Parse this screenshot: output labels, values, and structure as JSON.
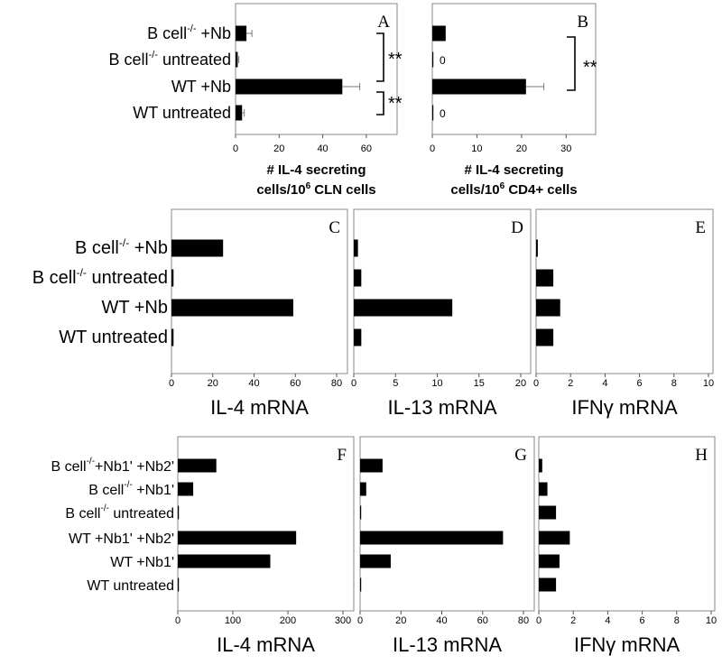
{
  "chart_data": [
    {
      "panel": "A",
      "type": "bar",
      "orientation": "horizontal",
      "categories": [
        "B cell -/- +Nb",
        "B cell -/- untreated",
        "WT +Nb",
        "WT untreated"
      ],
      "values": [
        5,
        1,
        49,
        3
      ],
      "errors": [
        2.5,
        0.5,
        8,
        1
      ],
      "xlim": [
        0,
        70
      ],
      "ticks": [
        "0",
        "20",
        "40",
        "60"
      ],
      "tick_values": [
        0,
        20,
        40,
        60
      ],
      "xlabel_line1": "# IL-4 secreting",
      "xlabel_line2": "cells/10",
      "xlabel_sup": "6",
      "xlabel_line2_tail": " CLN cells",
      "significance": [
        "**",
        "**"
      ]
    },
    {
      "panel": "B",
      "type": "bar",
      "orientation": "horizontal",
      "categories": [
        "B cell -/- +Nb",
        "B cell -/- untreated",
        "WT +Nb",
        "WT untreated"
      ],
      "values": [
        3,
        0,
        21,
        0
      ],
      "errors": [
        0,
        0,
        4,
        0
      ],
      "zero_labels": [
        "",
        "0",
        "",
        "0"
      ],
      "xlim": [
        0,
        35
      ],
      "ticks": [
        "0",
        "10",
        "20",
        "30"
      ],
      "tick_values": [
        0,
        10,
        20,
        30
      ],
      "xlabel_line1": "# IL-4 secreting",
      "xlabel_line2": "cells/10",
      "xlabel_sup": "6",
      "xlabel_line2_tail": " CD4+ cells",
      "significance": [
        "**"
      ]
    },
    {
      "panel": "C",
      "type": "bar",
      "orientation": "horizontal",
      "categories": [
        "B cell -/- +Nb",
        "B cell -/- untreated",
        "WT +Nb",
        "WT untreated"
      ],
      "values": [
        25,
        1,
        59,
        1
      ],
      "xlim": [
        0,
        80
      ],
      "ticks": [
        "0",
        "20",
        "40",
        "60",
        "80"
      ],
      "tick_values": [
        0,
        20,
        40,
        60,
        80
      ],
      "xlabel": "IL-4 mRNA"
    },
    {
      "panel": "D",
      "type": "bar",
      "orientation": "horizontal",
      "categories": [
        "B cell -/- +Nb",
        "B cell -/- untreated",
        "WT +Nb",
        "WT untreated"
      ],
      "values": [
        0.5,
        0.9,
        11.8,
        0.9
      ],
      "xlim": [
        0,
        20
      ],
      "ticks": [
        "0",
        "5",
        "10",
        "15",
        "20"
      ],
      "tick_values": [
        0,
        5,
        10,
        15,
        20
      ],
      "xlabel": "IL-13 mRNA"
    },
    {
      "panel": "E",
      "type": "bar",
      "orientation": "horizontal",
      "categories": [
        "B cell -/- +Nb",
        "B cell -/- untreated",
        "WT +Nb",
        "WT untreated"
      ],
      "values": [
        0.1,
        1,
        1.4,
        1
      ],
      "xlim": [
        0,
        10
      ],
      "ticks": [
        "0",
        "2",
        "4",
        "6",
        "8",
        "10"
      ],
      "tick_values": [
        0,
        2,
        4,
        6,
        8,
        10
      ],
      "xlabel": "IFNγ mRNA"
    },
    {
      "panel": "F",
      "type": "bar",
      "orientation": "horizontal",
      "categories": [
        "B cell -/- +Nb1' +Nb2'",
        "B cell -/- +Nb1'",
        "B cell -/- untreated",
        "WT +Nb1' +Nb2'",
        "WT +Nb1'",
        "WT untreated"
      ],
      "values": [
        70,
        28,
        2,
        215,
        168,
        2
      ],
      "xlim": [
        0,
        300
      ],
      "ticks": [
        "0",
        "100",
        "200",
        "300"
      ],
      "tick_values": [
        0,
        100,
        200,
        300
      ],
      "xlabel": "IL-4 mRNA"
    },
    {
      "panel": "G",
      "type": "bar",
      "orientation": "horizontal",
      "categories": [
        "B cell -/- +Nb1' +Nb2'",
        "B cell -/- +Nb1'",
        "B cell -/- untreated",
        "WT +Nb1' +Nb2'",
        "WT +Nb1'",
        "WT untreated"
      ],
      "values": [
        11,
        3,
        0.5,
        70,
        15,
        0.5
      ],
      "xlim": [
        0,
        80
      ],
      "ticks": [
        "0",
        "20",
        "40",
        "60",
        "80"
      ],
      "tick_values": [
        0,
        20,
        40,
        60,
        80
      ],
      "xlabel": "IL-13 mRNA"
    },
    {
      "panel": "H",
      "type": "bar",
      "orientation": "horizontal",
      "categories": [
        "B cell -/- +Nb1' +Nb2'",
        "B cell -/- +Nb1'",
        "B cell -/- untreated",
        "WT +Nb1' +Nb2'",
        "WT +Nb1'",
        "WT untreated"
      ],
      "values": [
        0.2,
        0.5,
        1,
        1.8,
        1.2,
        1
      ],
      "xlim": [
        0,
        10
      ],
      "ticks": [
        "0",
        "2",
        "4",
        "6",
        "8",
        "10"
      ],
      "tick_values": [
        0,
        2,
        4,
        6,
        8,
        10
      ],
      "xlabel": "IFNγ mRNA"
    }
  ],
  "row_labels": {
    "top": [
      {
        "pre": "B cell",
        "sup": "-/-",
        "post": " +Nb"
      },
      {
        "pre": "B cell",
        "sup": "-/-",
        "post": " untreated"
      },
      {
        "pre": "WT +Nb",
        "sup": "",
        "post": ""
      },
      {
        "pre": "WT untreated",
        "sup": "",
        "post": ""
      }
    ],
    "middle": [
      {
        "pre": "B cell",
        "sup": "-/-",
        "post": " +Nb"
      },
      {
        "pre": "B cell",
        "sup": "-/-",
        "post": " untreated"
      },
      {
        "pre": "WT +Nb",
        "sup": "",
        "post": ""
      },
      {
        "pre": "WT untreated",
        "sup": "",
        "post": ""
      }
    ],
    "bottom": [
      {
        "pre": "B cell",
        "sup": "-/-",
        "post": "+Nb1' +Nb2'"
      },
      {
        "pre": "B cell",
        "sup": "-/-",
        "post": " +Nb1'"
      },
      {
        "pre": "B cell",
        "sup": "-/-",
        "post": " untreated"
      },
      {
        "pre": "WT +Nb1' +Nb2'",
        "sup": "",
        "post": ""
      },
      {
        "pre": "WT +Nb1'",
        "sup": "",
        "post": ""
      },
      {
        "pre": "WT untreated",
        "sup": "",
        "post": ""
      }
    ]
  }
}
